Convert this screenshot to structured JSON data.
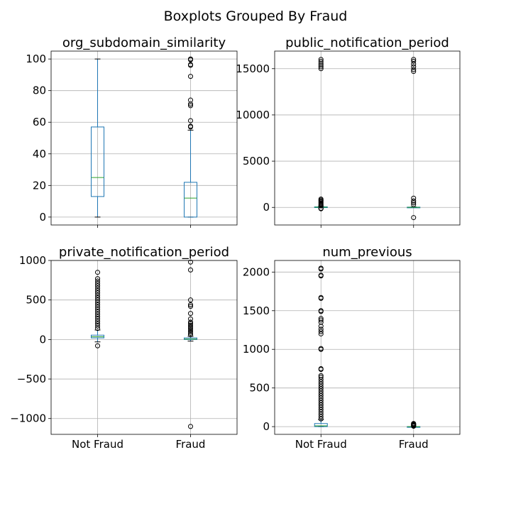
{
  "chart_data": {
    "type": "boxplot",
    "title": "Boxplots Grouped By Fraud",
    "categories": [
      "Not Fraud",
      "Fraud"
    ],
    "panels": [
      {
        "title": "org_subdomain_similarity",
        "ylim": [
          -5,
          105
        ],
        "yticks": [
          0,
          20,
          40,
          60,
          80,
          100
        ],
        "show_xlabels": false,
        "boxes": [
          {
            "category": "Not Fraud",
            "whislo": 0,
            "q1": 13,
            "med": 25,
            "q3": 57,
            "whishi": 100,
            "fliers": []
          },
          {
            "category": "Fraud",
            "whislo": 0,
            "q1": 0,
            "med": 12,
            "q3": 22,
            "whishi": 55,
            "fliers": [
              57,
              57.5,
              61,
              70.5,
              71.5,
              74,
              89,
              96,
              96.5,
              99.5,
              100
            ]
          }
        ]
      },
      {
        "title": "public_notification_period",
        "ylim": [
          -1900,
          16900
        ],
        "yticks": [
          0,
          5000,
          10000,
          15000
        ],
        "show_xlabels": false,
        "boxes": [
          {
            "category": "Not Fraud",
            "whislo": -50,
            "q1": 10,
            "med": 30,
            "q3": 60,
            "whishi": 120,
            "fliers": [
              -150,
              -100,
              200,
              300,
              400,
              500,
              600,
              700,
              800,
              900,
              15000,
              15200,
              15400,
              15600,
              15800,
              16000
            ]
          },
          {
            "category": "Fraud",
            "whislo": -20,
            "q1": 0,
            "med": 10,
            "q3": 30,
            "whishi": 60,
            "fliers": [
              -1100,
              300,
              500,
              700,
              1000,
              14700,
              14900,
              15200,
              15500,
              15800,
              16000
            ]
          }
        ]
      },
      {
        "title": "private_notification_period",
        "ylim": [
          -1200,
          1000
        ],
        "yticks": [
          -1000,
          -500,
          0,
          500,
          1000
        ],
        "show_xlabels": true,
        "boxes": [
          {
            "category": "Not Fraud",
            "whislo": -30,
            "q1": 20,
            "med": 35,
            "q3": 55,
            "whishi": 120,
            "fliers": [
              -80,
              140,
              170,
              200,
              230,
              260,
              290,
              320,
              350,
              380,
              410,
              440,
              470,
              500,
              530,
              560,
              590,
              620,
              650,
              680,
              710,
              740,
              770,
              850
            ]
          },
          {
            "category": "Fraud",
            "whislo": -20,
            "q1": 0,
            "med": 5,
            "q3": 20,
            "whishi": 40,
            "fliers": [
              -1100,
              60,
              80,
              100,
              120,
              140,
              160,
              180,
              200,
              220,
              260,
              330,
              420,
              440,
              500,
              880,
              980
            ]
          }
        ]
      },
      {
        "title": "num_previous",
        "ylim": [
          -100,
          2150
        ],
        "yticks": [
          0,
          500,
          1000,
          1500,
          2000
        ],
        "show_xlabels": true,
        "boxes": [
          {
            "category": "Not Fraud",
            "whislo": 0,
            "q1": 0,
            "med": 10,
            "q3": 40,
            "whishi": 90,
            "fliers": [
              100,
              130,
              160,
              190,
              220,
              250,
              280,
              310,
              340,
              370,
              400,
              430,
              460,
              490,
              520,
              550,
              580,
              610,
              640,
              660,
              740,
              750,
              1000,
              1010,
              1200,
              1230,
              1260,
              1300,
              1350,
              1380,
              1400,
              1490,
              1500,
              1660,
              1670,
              1950,
              1960,
              2040,
              2050
            ]
          },
          {
            "category": "Fraud",
            "whislo": 0,
            "q1": 0,
            "med": 0,
            "q3": 0,
            "whishi": 0,
            "fliers": [
              5,
              10,
              15,
              20,
              25,
              30,
              35,
              40
            ]
          }
        ]
      }
    ]
  }
}
